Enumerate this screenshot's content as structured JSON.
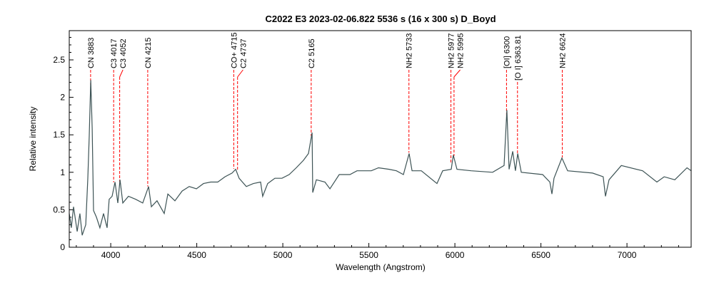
{
  "chart_data": {
    "type": "line",
    "title": "C2022 E3   2023-02-06.822   5536 s (16 x 300 s)   D_Boyd",
    "xlabel": "Wavelength (Angstrom)",
    "ylabel": "Relative intensity",
    "xlim": [
      3759,
      7373
    ],
    "ylim": [
      0,
      2.89
    ],
    "x_ticks": [
      4000,
      4500,
      5000,
      5500,
      6000,
      6500,
      7000
    ],
    "y_ticks": [
      0,
      0.5,
      1,
      1.5,
      2,
      2.5
    ],
    "grid": false,
    "colors": {
      "spectrum": "#3d5355",
      "line_markers": "#ff0000"
    },
    "series": [
      {
        "points": [
          [
            3759,
            0.45
          ],
          [
            3771,
            0.26
          ],
          [
            3784,
            0.54
          ],
          [
            3805,
            0.21
          ],
          [
            3821,
            0.45
          ],
          [
            3834,
            0.16
          ],
          [
            3855,
            0.3
          ],
          [
            3867,
            0.92
          ],
          [
            3875,
            1.49
          ],
          [
            3884,
            2.23
          ],
          [
            3892,
            1.59
          ],
          [
            3900,
            0.49
          ],
          [
            3917,
            0.4
          ],
          [
            3937,
            0.26
          ],
          [
            3958,
            0.45
          ],
          [
            3979,
            0.26
          ],
          [
            3991,
            0.64
          ],
          [
            4008,
            0.68
          ],
          [
            4025,
            0.87
          ],
          [
            4041,
            0.59
          ],
          [
            4054,
            0.9
          ],
          [
            4070,
            0.59
          ],
          [
            4103,
            0.68
          ],
          [
            4145,
            0.64
          ],
          [
            4186,
            0.59
          ],
          [
            4220,
            0.81
          ],
          [
            4236,
            0.54
          ],
          [
            4269,
            0.62
          ],
          [
            4311,
            0.45
          ],
          [
            4332,
            0.71
          ],
          [
            4373,
            0.62
          ],
          [
            4415,
            0.75
          ],
          [
            4456,
            0.81
          ],
          [
            4498,
            0.78
          ],
          [
            4539,
            0.85
          ],
          [
            4581,
            0.87
          ],
          [
            4622,
            0.87
          ],
          [
            4664,
            0.94
          ],
          [
            4705,
            0.99
          ],
          [
            4726,
            1.04
          ],
          [
            4746,
            0.92
          ],
          [
            4788,
            0.81
          ],
          [
            4829,
            0.85
          ],
          [
            4871,
            0.87
          ],
          [
            4883,
            0.68
          ],
          [
            4912,
            0.85
          ],
          [
            4954,
            0.92
          ],
          [
            4995,
            0.92
          ],
          [
            5037,
            0.97
          ],
          [
            5078,
            1.06
          ],
          [
            5120,
            1.16
          ],
          [
            5149,
            1.25
          ],
          [
            5170,
            1.53
          ],
          [
            5174,
            0.73
          ],
          [
            5195,
            0.9
          ],
          [
            5245,
            0.87
          ],
          [
            5274,
            0.78
          ],
          [
            5328,
            0.97
          ],
          [
            5390,
            0.97
          ],
          [
            5431,
            1.02
          ],
          [
            5473,
            1.02
          ],
          [
            5514,
            1.02
          ],
          [
            5556,
            1.06
          ],
          [
            5618,
            1.04
          ],
          [
            5660,
            1.02
          ],
          [
            5701,
            0.97
          ],
          [
            5734,
            1.25
          ],
          [
            5751,
            1.02
          ],
          [
            5805,
            1.02
          ],
          [
            5896,
            0.85
          ],
          [
            5929,
            1.02
          ],
          [
            5979,
            1.04
          ],
          [
            5991,
            1.23
          ],
          [
            6012,
            1.04
          ],
          [
            6095,
            1.02
          ],
          [
            6219,
            1.0
          ],
          [
            6286,
            1.09
          ],
          [
            6302,
            1.83
          ],
          [
            6315,
            1.04
          ],
          [
            6336,
            1.28
          ],
          [
            6352,
            1.02
          ],
          [
            6365,
            1.25
          ],
          [
            6386,
            1.0
          ],
          [
            6510,
            0.97
          ],
          [
            6552,
            0.87
          ],
          [
            6564,
            0.71
          ],
          [
            6576,
            0.92
          ],
          [
            6622,
            1.19
          ],
          [
            6655,
            1.02
          ],
          [
            6800,
            0.99
          ],
          [
            6862,
            0.94
          ],
          [
            6875,
            0.68
          ],
          [
            6896,
            0.9
          ],
          [
            6967,
            1.09
          ],
          [
            7091,
            1.02
          ],
          [
            7174,
            0.87
          ],
          [
            7216,
            0.94
          ],
          [
            7278,
            0.9
          ],
          [
            7349,
            1.06
          ],
          [
            7373,
            1.02
          ]
        ]
      }
    ],
    "annotations": [
      {
        "label": "CN 3883",
        "x": 3883
      },
      {
        "label": "C3 4017",
        "x": 4017
      },
      {
        "label": "C3 4052",
        "x": 4052
      },
      {
        "label": "CN 4215",
        "x": 4215
      },
      {
        "label": "CO+ 4715",
        "x": 4715
      },
      {
        "label": "C2 4737",
        "x": 4737
      },
      {
        "label": "C2 5165",
        "x": 5165
      },
      {
        "label": "NH2 5733",
        "x": 5733
      },
      {
        "label": "NH2 5977",
        "x": 5977
      },
      {
        "label": "NH2 5995",
        "x": 5995
      },
      {
        "label": "[OI] 6300",
        "x": 6300
      },
      {
        "label": "[O I] 6363.81",
        "x": 6363.81,
        "lowered": true
      },
      {
        "label": "NH2 6624",
        "x": 6624
      }
    ]
  }
}
